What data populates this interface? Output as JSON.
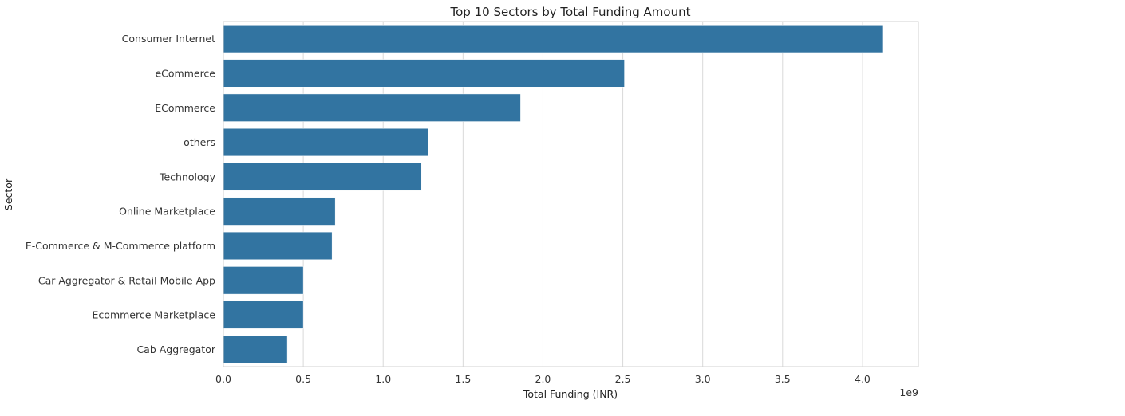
{
  "chart_data": {
    "type": "bar",
    "orientation": "horizontal",
    "title": "Top 10 Sectors by Total Funding Amount",
    "xlabel": "Total Funding (INR)",
    "ylabel": "Sector",
    "offset_text": "1e9",
    "categories": [
      "Consumer Internet",
      "eCommerce",
      "ECommerce",
      "others",
      "Technology",
      "Online Marketplace",
      "E-Commerce & M-Commerce platform",
      "Car Aggregator & Retail Mobile App",
      "Ecommerce Marketplace",
      "Cab Aggregator"
    ],
    "values": [
      4.13,
      2.51,
      1.86,
      1.28,
      1.24,
      0.7,
      0.68,
      0.5,
      0.5,
      0.4
    ],
    "value_scale": 1000000000,
    "xlim": [
      0,
      4.35
    ],
    "xticks": [
      0.0,
      0.5,
      1.0,
      1.5,
      2.0,
      2.5,
      3.0,
      3.5,
      4.0
    ],
    "xtick_labels": [
      "0.0",
      "0.5",
      "1.0",
      "1.5",
      "2.0",
      "2.5",
      "3.0",
      "3.5",
      "4.0"
    ],
    "grid": "vertical",
    "colors": {
      "bar": "#3274a1"
    }
  }
}
